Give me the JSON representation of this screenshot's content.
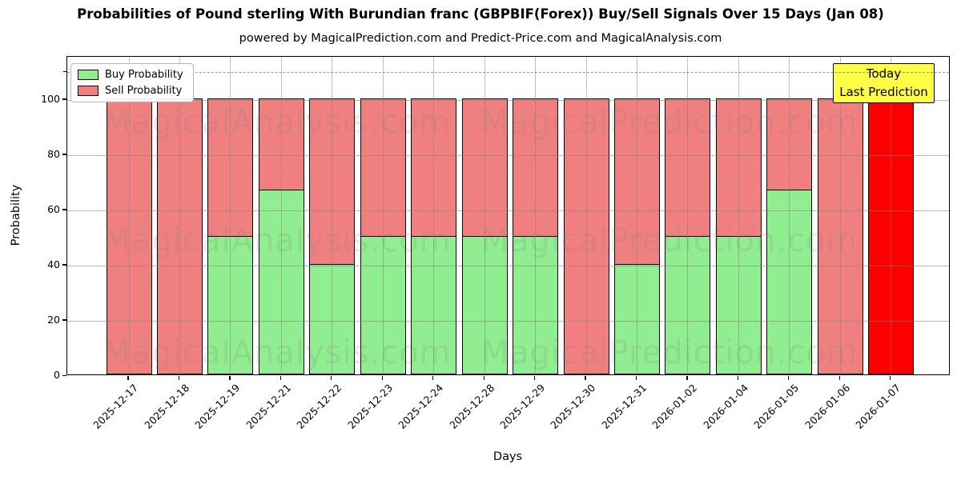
{
  "title": "Probabilities of Pound sterling With Burundian franc (GBPBIF(Forex)) Buy/Sell Signals Over 15 Days (Jan 08)",
  "subtitle": "powered by MagicalPrediction.com and Predict-Price.com and MagicalAnalysis.com",
  "watermarks": {
    "left_text": "MagicalAnalysis.com",
    "right_text": "MagicalPrediction.com"
  },
  "today_box": {
    "line1": "Today",
    "line2": "Last Prediction",
    "bg_color": "#ffff47"
  },
  "chart_data": {
    "type": "bar",
    "stacked": true,
    "title": "Probabilities of Pound sterling With Burundian franc (GBPBIF(Forex)) Buy/Sell Signals Over 15 Days (Jan 08)",
    "xlabel": "Days",
    "ylabel": "Probability",
    "grid": true,
    "legend_position": "upper left",
    "ylim": [
      0,
      115.6
    ],
    "yticks": [
      0,
      20,
      40,
      60,
      80,
      100
    ],
    "dashed_line_y": 110,
    "categories": [
      "2025-12-17",
      "2025-12-18",
      "2025-12-19",
      "2025-12-21",
      "2025-12-22",
      "2025-12-23",
      "2025-12-24",
      "2025-12-28",
      "2025-12-29",
      "2025-12-30",
      "2025-12-31",
      "2026-01-02",
      "2026-01-04",
      "2026-01-05",
      "2026-01-06",
      "2026-01-07"
    ],
    "series": [
      {
        "name": "Buy Probability",
        "color": "#90ee90",
        "values": [
          0,
          0,
          50,
          67,
          40,
          50,
          50,
          50,
          50,
          0,
          40,
          50,
          50,
          67,
          0,
          0
        ]
      },
      {
        "name": "Sell Probability",
        "color": "#f08080",
        "values": [
          100,
          100,
          50,
          33,
          60,
          50,
          50,
          50,
          50,
          100,
          60,
          50,
          50,
          33,
          100,
          100
        ]
      }
    ],
    "today_bar": {
      "index": 15,
      "color": "#ff0000",
      "value": 100
    }
  }
}
